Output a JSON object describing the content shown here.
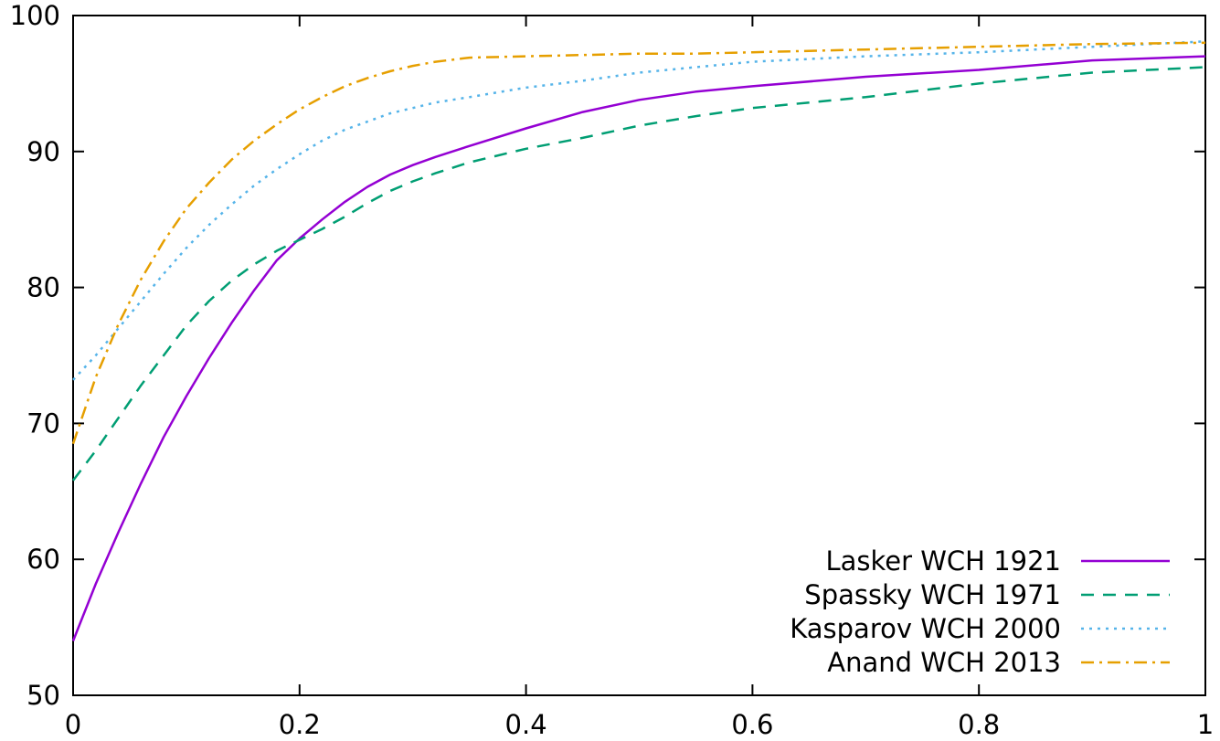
{
  "chart_data": {
    "type": "line",
    "title": "",
    "xlabel": "",
    "ylabel": "",
    "xlim": [
      0,
      1
    ],
    "ylim": [
      50,
      100
    ],
    "xticks": [
      0,
      0.2,
      0.4,
      0.6,
      0.8,
      1
    ],
    "xtick_labels": [
      "0",
      "0.2",
      "0.4",
      "0.6",
      "0.8",
      "1"
    ],
    "yticks": [
      50,
      60,
      70,
      80,
      90,
      100
    ],
    "ytick_labels": [
      "50",
      "60",
      "70",
      "80",
      "90",
      "100"
    ],
    "grid": false,
    "legend_position": "bottom-right",
    "series": [
      {
        "name": "Lasker WCH 1921",
        "color": "#9400d3",
        "dash": "solid",
        "x": [
          0,
          0.02,
          0.04,
          0.06,
          0.08,
          0.1,
          0.12,
          0.14,
          0.16,
          0.18,
          0.2,
          0.22,
          0.24,
          0.26,
          0.28,
          0.3,
          0.32,
          0.35,
          0.4,
          0.45,
          0.5,
          0.55,
          0.6,
          0.7,
          0.8,
          0.9,
          1.0
        ],
        "values": [
          54.0,
          58.2,
          62.0,
          65.6,
          69.0,
          72.0,
          74.8,
          77.4,
          79.8,
          82.0,
          83.6,
          85.0,
          86.3,
          87.4,
          88.3,
          89.0,
          89.6,
          90.4,
          91.7,
          92.9,
          93.8,
          94.4,
          94.8,
          95.5,
          96.0,
          96.7,
          97.0
        ]
      },
      {
        "name": "Spassky WCH 1971",
        "color": "#009e73",
        "dash": "dashed",
        "x": [
          0,
          0.02,
          0.04,
          0.06,
          0.08,
          0.1,
          0.12,
          0.14,
          0.16,
          0.18,
          0.2,
          0.22,
          0.24,
          0.26,
          0.28,
          0.3,
          0.32,
          0.35,
          0.4,
          0.45,
          0.5,
          0.55,
          0.6,
          0.7,
          0.8,
          0.9,
          1.0
        ],
        "values": [
          65.8,
          68.0,
          70.4,
          72.8,
          75.0,
          77.2,
          79.0,
          80.5,
          81.7,
          82.7,
          83.5,
          84.3,
          85.2,
          86.2,
          87.1,
          87.8,
          88.4,
          89.2,
          90.2,
          91.0,
          91.9,
          92.6,
          93.2,
          94.0,
          95.0,
          95.8,
          96.2
        ]
      },
      {
        "name": "Kasparov WCH 2000",
        "color": "#56b4e9",
        "dash": "dotted",
        "x": [
          0,
          0.02,
          0.04,
          0.06,
          0.08,
          0.1,
          0.12,
          0.14,
          0.16,
          0.18,
          0.2,
          0.22,
          0.24,
          0.26,
          0.28,
          0.3,
          0.32,
          0.35,
          0.4,
          0.45,
          0.5,
          0.55,
          0.6,
          0.7,
          0.8,
          0.9,
          1.0
        ],
        "values": [
          73.2,
          75.0,
          77.0,
          79.0,
          81.0,
          82.9,
          84.6,
          86.1,
          87.5,
          88.7,
          89.8,
          90.8,
          91.6,
          92.2,
          92.8,
          93.2,
          93.6,
          94.0,
          94.7,
          95.2,
          95.8,
          96.2,
          96.6,
          97.0,
          97.3,
          97.7,
          98.1
        ]
      },
      {
        "name": "Anand WCH 2013",
        "color": "#e69f00",
        "dash": "dashdot",
        "x": [
          0,
          0.02,
          0.04,
          0.06,
          0.08,
          0.1,
          0.12,
          0.14,
          0.16,
          0.18,
          0.2,
          0.22,
          0.24,
          0.26,
          0.28,
          0.3,
          0.32,
          0.35,
          0.4,
          0.45,
          0.5,
          0.55,
          0.6,
          0.7,
          0.8,
          0.9,
          1.0
        ],
        "values": [
          68.5,
          73.4,
          77.3,
          80.6,
          83.4,
          85.8,
          87.7,
          89.4,
          90.8,
          92.0,
          93.1,
          94.0,
          94.8,
          95.4,
          95.9,
          96.3,
          96.6,
          96.9,
          97.0,
          97.1,
          97.2,
          97.2,
          97.3,
          97.5,
          97.7,
          97.9,
          98.0
        ]
      }
    ]
  }
}
